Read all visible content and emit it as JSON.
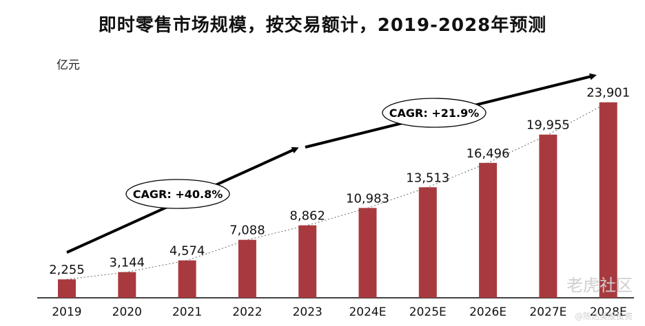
{
  "chart_data": {
    "type": "bar",
    "title": "即时零售市场规模，按交易额计，2019-2028年预测",
    "ylabel": "亿元",
    "xlabel": "",
    "categories": [
      "2019",
      "2020",
      "2021",
      "2022",
      "2023",
      "2024E",
      "2025E",
      "2026E",
      "2027E",
      "2028E"
    ],
    "values": [
      2255,
      3144,
      4574,
      7088,
      8862,
      10983,
      13513,
      16496,
      19955,
      23901
    ],
    "value_labels": [
      "2,255",
      "3,144",
      "4,574",
      "7,088",
      "8,862",
      "10,983",
      "13,513",
      "16,496",
      "19,955",
      "23,901"
    ],
    "ylim": [
      0,
      28000
    ],
    "grid": false,
    "bar_color": "#a83a3f",
    "annotations": [
      {
        "text": "CAGR: +40.8%",
        "from": "2019",
        "to": "2023"
      },
      {
        "text": "CAGR: +21.9%",
        "from": "2024E",
        "to": "2028E"
      }
    ]
  },
  "watermark": {
    "brand": "老虎社区",
    "author": "@陈达美股投资"
  }
}
